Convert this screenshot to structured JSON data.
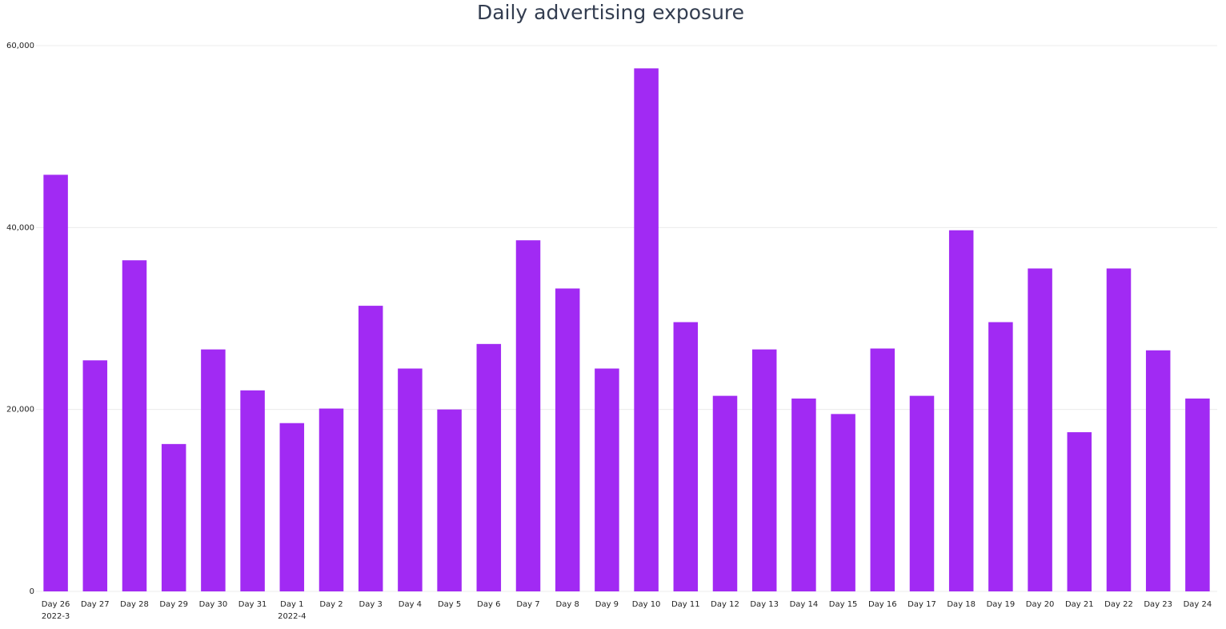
{
  "chart_data": {
    "type": "bar",
    "title": "Daily advertising exposure",
    "categories": [
      "Day 26",
      "Day 27",
      "Day 28",
      "Day 29",
      "Day 30",
      "Day 31",
      "Day 1",
      "Day 2",
      "Day 3",
      "Day 4",
      "Day 5",
      "Day 6",
      "Day 7",
      "Day 8",
      "Day 9",
      "Day 10",
      "Day 11",
      "Day 12",
      "Day 13",
      "Day 14",
      "Day 15",
      "Day 16",
      "Day 17",
      "Day 18",
      "Day 19",
      "Day 20",
      "Day 21",
      "Day 22",
      "Day 23",
      "Day 24"
    ],
    "period_labels": [
      "2022-3",
      null,
      null,
      null,
      null,
      null,
      "2022-4",
      null,
      null,
      null,
      null,
      null,
      null,
      null,
      null,
      null,
      null,
      null,
      null,
      null,
      null,
      null,
      null,
      null,
      null,
      null,
      null,
      null,
      null,
      null
    ],
    "values": [
      45800,
      25400,
      36400,
      16200,
      26600,
      22100,
      18500,
      20100,
      31400,
      24500,
      20000,
      27200,
      38600,
      33300,
      24500,
      57500,
      29600,
      21500,
      26600,
      21200,
      19500,
      26700,
      21500,
      39700,
      29600,
      35500,
      17500,
      35500,
      26500,
      21200
    ],
    "color": "#a12af3",
    "ylim": [
      0,
      60000
    ],
    "yticks": [
      0,
      {
        "value": 20000,
        "label": "20,000"
      },
      {
        "value": 40000,
        "label": "40,000"
      },
      {
        "value": 60000,
        "label": "60,000"
      }
    ],
    "grid": true
  }
}
